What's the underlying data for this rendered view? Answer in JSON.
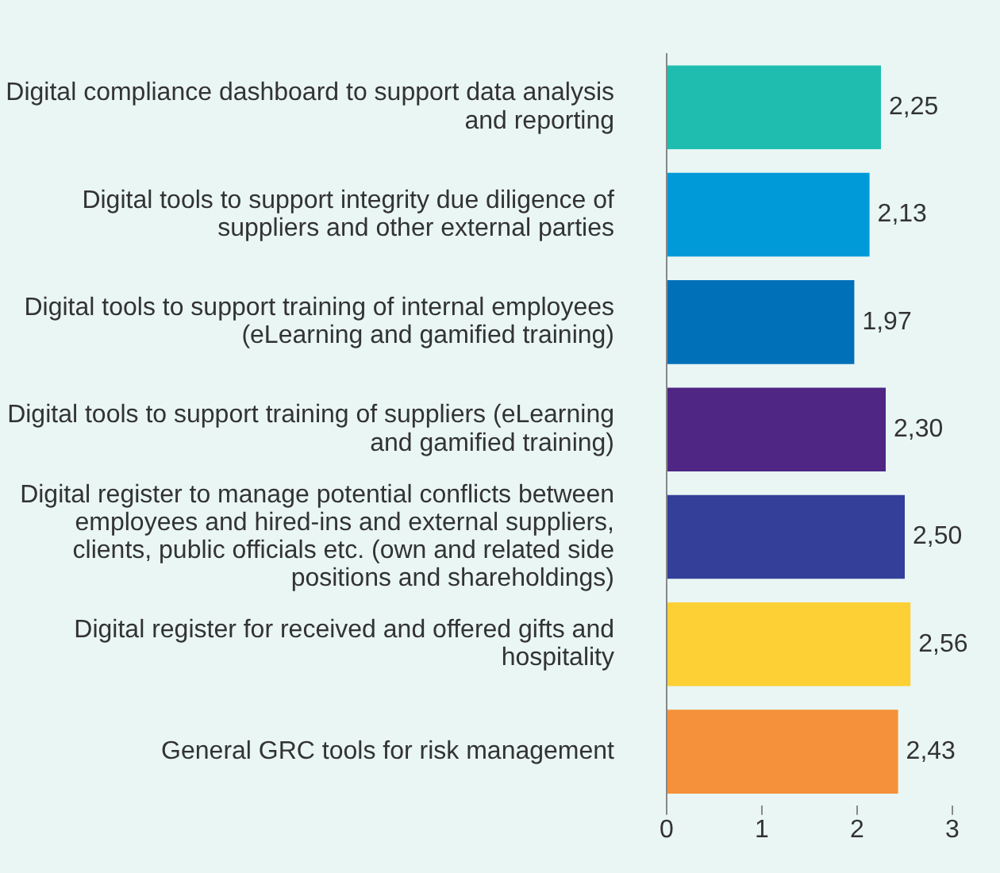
{
  "chart_data": {
    "type": "bar",
    "orientation": "horizontal",
    "categories": [
      "Digital compliance dashboard to support data analysis and reporting",
      "Digital tools to support integrity due diligence of suppliers and other external parties",
      "Digital tools to support training of internal employees (eLearning and gamified training)",
      "Digital tools to support training of suppliers (eLearning and gamified training)",
      "Digital register to manage potential conflicts between employees and hired-ins and external suppliers, clients, public officials etc. (own and related side positions and shareholdings)",
      "Digital register for received and offered gifts and hospitality",
      "General GRC tools for risk management"
    ],
    "values": [
      2.25,
      2.13,
      1.97,
      2.3,
      2.5,
      2.56,
      2.43
    ],
    "value_labels": [
      "2,25",
      "2,13",
      "1,97",
      "2,30",
      "2,50",
      "2,56",
      "2,43"
    ],
    "colors": [
      "#1fbdb0",
      "#009ad9",
      "#0070b8",
      "#4f2683",
      "#343f99",
      "#fdd035",
      "#f5913a"
    ],
    "xlim": [
      0,
      3
    ],
    "xticks": [
      0,
      1,
      2,
      3
    ],
    "grid": false,
    "legend": false
  }
}
